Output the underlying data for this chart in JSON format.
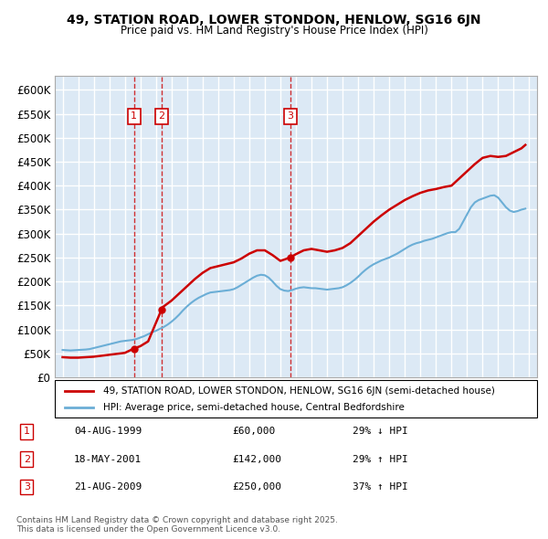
{
  "title": "49, STATION ROAD, LOWER STONDON, HENLOW, SG16 6JN",
  "subtitle": "Price paid vs. HM Land Registry's House Price Index (HPI)",
  "ylabel_ticks": [
    "£0",
    "£50K",
    "£100K",
    "£150K",
    "£200K",
    "£250K",
    "£300K",
    "£350K",
    "£400K",
    "£450K",
    "£500K",
    "£550K",
    "£600K"
  ],
  "ylim": [
    0,
    620000
  ],
  "xlim_start": 1994.5,
  "xlim_end": 2025.5,
  "background_color": "#dce9f5",
  "plot_bg_color": "#dce9f5",
  "grid_color": "#ffffff",
  "legend_line1": "49, STATION ROAD, LOWER STONDON, HENLOW, SG16 6JN (semi-detached house)",
  "legend_line2": "HPI: Average price, semi-detached house, Central Bedfordshire",
  "transactions": [
    {
      "num": 1,
      "date": "04-AUG-1999",
      "price": 60000,
      "pct": "29%",
      "dir": "↓",
      "year": 1999.59
    },
    {
      "num": 2,
      "date": "18-MAY-2001",
      "price": 142000,
      "pct": "29%",
      "dir": "↑",
      "year": 2001.37
    },
    {
      "num": 3,
      "date": "21-AUG-2009",
      "price": 250000,
      "pct": "37%",
      "dir": "↑",
      "year": 2009.63
    }
  ],
  "footer": "Contains HM Land Registry data © Crown copyright and database right 2025.\nThis data is licensed under the Open Government Licence v3.0.",
  "hpi_line_color": "#6baed6",
  "price_line_color": "#cc0000",
  "marker_box_color": "#cc0000",
  "dashed_line_color": "#cc0000",
  "hpi_data_x": [
    1995.0,
    1995.25,
    1995.5,
    1995.75,
    1996.0,
    1996.25,
    1996.5,
    1996.75,
    1997.0,
    1997.25,
    1997.5,
    1997.75,
    1998.0,
    1998.25,
    1998.5,
    1998.75,
    1999.0,
    1999.25,
    1999.5,
    1999.75,
    2000.0,
    2000.25,
    2000.5,
    2000.75,
    2001.0,
    2001.25,
    2001.5,
    2001.75,
    2002.0,
    2002.25,
    2002.5,
    2002.75,
    2003.0,
    2003.25,
    2003.5,
    2003.75,
    2004.0,
    2004.25,
    2004.5,
    2004.75,
    2005.0,
    2005.25,
    2005.5,
    2005.75,
    2006.0,
    2006.25,
    2006.5,
    2006.75,
    2007.0,
    2007.25,
    2007.5,
    2007.75,
    2008.0,
    2008.25,
    2008.5,
    2008.75,
    2009.0,
    2009.25,
    2009.5,
    2009.75,
    2010.0,
    2010.25,
    2010.5,
    2010.75,
    2011.0,
    2011.25,
    2011.5,
    2011.75,
    2012.0,
    2012.25,
    2012.5,
    2012.75,
    2013.0,
    2013.25,
    2013.5,
    2013.75,
    2014.0,
    2014.25,
    2014.5,
    2014.75,
    2015.0,
    2015.25,
    2015.5,
    2015.75,
    2016.0,
    2016.25,
    2016.5,
    2016.75,
    2017.0,
    2017.25,
    2017.5,
    2017.75,
    2018.0,
    2018.25,
    2018.5,
    2018.75,
    2019.0,
    2019.25,
    2019.5,
    2019.75,
    2020.0,
    2020.25,
    2020.5,
    2020.75,
    2021.0,
    2021.25,
    2021.5,
    2021.75,
    2022.0,
    2022.25,
    2022.5,
    2022.75,
    2023.0,
    2023.25,
    2023.5,
    2023.75,
    2024.0,
    2024.25,
    2024.5,
    2024.75
  ],
  "hpi_data_y": [
    57000,
    56500,
    56000,
    56500,
    57000,
    57500,
    58000,
    59000,
    61000,
    63000,
    65000,
    67000,
    69000,
    71000,
    73000,
    75000,
    76000,
    77000,
    78000,
    80000,
    83000,
    86000,
    90000,
    94000,
    97000,
    101000,
    105000,
    110000,
    116000,
    123000,
    131000,
    140000,
    148000,
    155000,
    161000,
    166000,
    170000,
    174000,
    177000,
    178000,
    179000,
    180000,
    181000,
    182000,
    184000,
    188000,
    193000,
    198000,
    203000,
    208000,
    212000,
    214000,
    213000,
    208000,
    200000,
    191000,
    184000,
    181000,
    180000,
    182000,
    185000,
    187000,
    188000,
    187000,
    186000,
    186000,
    185000,
    184000,
    183000,
    184000,
    185000,
    186000,
    188000,
    192000,
    197000,
    203000,
    210000,
    218000,
    225000,
    231000,
    236000,
    240000,
    244000,
    247000,
    250000,
    254000,
    258000,
    263000,
    268000,
    273000,
    277000,
    280000,
    282000,
    285000,
    287000,
    289000,
    292000,
    295000,
    298000,
    301000,
    303000,
    303000,
    310000,
    325000,
    340000,
    355000,
    365000,
    370000,
    373000,
    376000,
    379000,
    380000,
    375000,
    365000,
    355000,
    348000,
    345000,
    347000,
    350000,
    352000
  ],
  "price_data_x": [
    1995.0,
    1995.5,
    1996.0,
    1996.5,
    1997.0,
    1997.5,
    1998.0,
    1998.5,
    1999.0,
    1999.59,
    1999.75,
    2000.0,
    2000.5,
    2001.37,
    2001.5,
    2002.0,
    2002.5,
    2003.0,
    2003.5,
    2004.0,
    2004.5,
    2005.0,
    2005.5,
    2006.0,
    2006.5,
    2007.0,
    2007.5,
    2008.0,
    2008.5,
    2009.0,
    2009.63,
    2010.0,
    2010.5,
    2011.0,
    2011.5,
    2012.0,
    2012.5,
    2013.0,
    2013.5,
    2014.0,
    2014.5,
    2015.0,
    2015.5,
    2016.0,
    2016.5,
    2017.0,
    2017.5,
    2018.0,
    2018.5,
    2019.0,
    2019.5,
    2020.0,
    2020.5,
    2021.0,
    2021.5,
    2022.0,
    2022.5,
    2023.0,
    2023.5,
    2024.0,
    2024.5,
    2024.75
  ],
  "price_data_y": [
    42000,
    41000,
    41000,
    42000,
    43000,
    45000,
    47000,
    49000,
    51000,
    60000,
    62000,
    65000,
    75000,
    142000,
    148000,
    160000,
    175000,
    190000,
    205000,
    218000,
    228000,
    232000,
    236000,
    240000,
    248000,
    258000,
    265000,
    265000,
    255000,
    243000,
    250000,
    257000,
    265000,
    268000,
    265000,
    262000,
    265000,
    270000,
    280000,
    295000,
    310000,
    325000,
    338000,
    350000,
    360000,
    370000,
    378000,
    385000,
    390000,
    393000,
    397000,
    400000,
    415000,
    430000,
    445000,
    458000,
    462000,
    460000,
    462000,
    470000,
    478000,
    485000
  ]
}
